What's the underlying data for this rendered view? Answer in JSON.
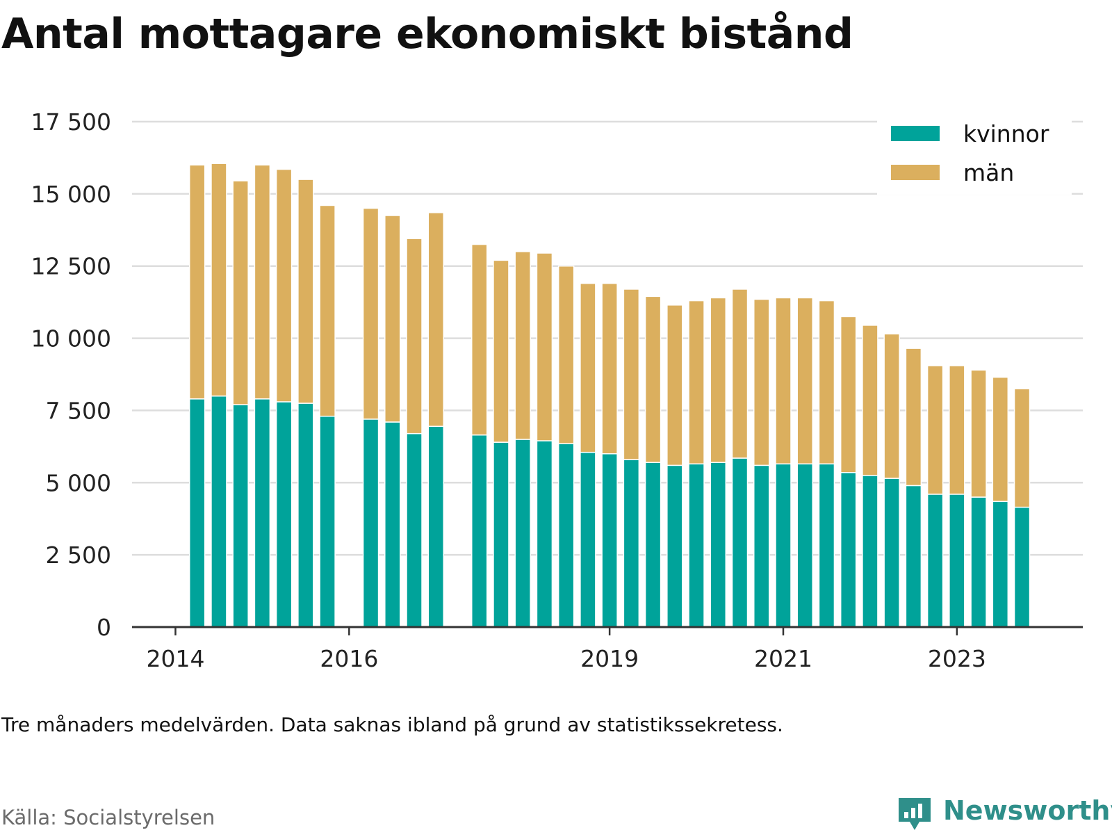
{
  "title": "Antal mottagare ekonomiskt bistånd",
  "note": "Tre månaders medelvärden. Data saknas ibland på grund av statistikssekretess.",
  "source": "Källa: Socialstyrelsen",
  "brand": {
    "name": "Newsworthy",
    "color": "#2f8f8a",
    "icon": "newsworthy-logo-icon"
  },
  "colors": {
    "kvinnor": "#00a39a",
    "man": "#dbaf5e",
    "grid": "#dddddd",
    "axis": "#333333"
  },
  "chart_data": {
    "type": "bar",
    "stacked": true,
    "title": "Antal mottagare ekonomiskt bistånd",
    "xlabel": "",
    "ylabel": "",
    "ylim": [
      0,
      17500
    ],
    "yticks": [
      0,
      2500,
      5000,
      7500,
      10000,
      12500,
      15000,
      17500
    ],
    "ytick_labels": [
      "0",
      "2 500",
      "5 000",
      "7 500",
      "10 000",
      "12 500",
      "15 000",
      "17 500"
    ],
    "xticks": [
      2014,
      2016,
      2019,
      2021,
      2023
    ],
    "xtick_labels": [
      "2014",
      "2016",
      "2019",
      "2021",
      "2023"
    ],
    "xlim": [
      2013.5,
      2024.45
    ],
    "grid": true,
    "legend_position": "top-right",
    "x": [
      2014.25,
      2014.5,
      2014.75,
      2015.0,
      2015.25,
      2015.5,
      2015.75,
      2016.25,
      2016.5,
      2016.75,
      2017.0,
      2017.5,
      2017.75,
      2018.0,
      2018.25,
      2018.5,
      2018.75,
      2019.0,
      2019.25,
      2019.5,
      2019.75,
      2020.0,
      2020.25,
      2020.5,
      2020.75,
      2021.0,
      2021.25,
      2021.5,
      2021.75,
      2022.0,
      2022.25,
      2022.5,
      2022.75,
      2023.0,
      2023.25,
      2023.5,
      2023.75
    ],
    "series": [
      {
        "name": "kvinnor",
        "values": [
          7900,
          8000,
          7700,
          7900,
          7800,
          7750,
          7300,
          7200,
          7100,
          6700,
          6950,
          6650,
          6400,
          6500,
          6450,
          6350,
          6050,
          6000,
          5800,
          5700,
          5600,
          5650,
          5700,
          5850,
          5600,
          5650,
          5650,
          5650,
          5350,
          5250,
          5150,
          4900,
          4600,
          4600,
          4500,
          4350,
          4150
        ]
      },
      {
        "name": "män",
        "values": [
          8100,
          8050,
          7750,
          8100,
          8050,
          7750,
          7300,
          7300,
          7150,
          6750,
          7400,
          6600,
          6300,
          6500,
          6500,
          6150,
          5850,
          5900,
          5900,
          5750,
          5550,
          5650,
          5700,
          5850,
          5750,
          5750,
          5750,
          5650,
          5400,
          5200,
          5000,
          4750,
          4450,
          4450,
          4400,
          4300,
          4100
        ]
      }
    ]
  }
}
